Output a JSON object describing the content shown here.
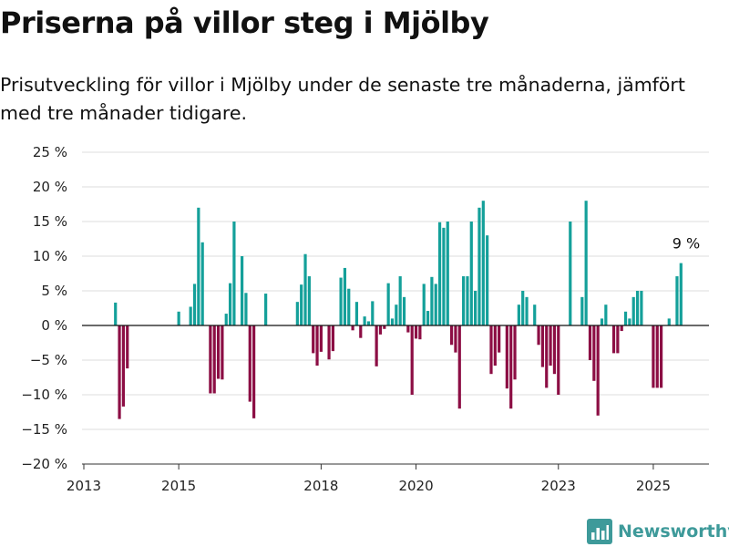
{
  "header": {
    "title": "Priserna på villor steg i Mjölby",
    "subtitle": "Prisutveckling för villor i Mjölby under de senaste tre månaderna, jämfört med tre månader tidigare."
  },
  "brand": {
    "name": "Newsworthy",
    "icon": "newsworthy-logo-icon"
  },
  "chart_data": {
    "type": "bar",
    "colors": {
      "positive": "#14a09a",
      "negative": "#8c0e44",
      "zero_line": "#111111",
      "grid": "#dddddd"
    },
    "grid": true,
    "ylim": [
      -20,
      25
    ],
    "y_ticks": [
      25,
      20,
      15,
      10,
      5,
      0,
      -5,
      -10,
      -15,
      -20
    ],
    "y_tick_labels": [
      "25 %",
      "20 %",
      "15 %",
      "10 %",
      "5 %",
      "0 %",
      "−5 %",
      "−10 %",
      "−15 %",
      "−20 %"
    ],
    "x_ticks": [
      2013,
      2015,
      2018,
      2020,
      2023,
      2025
    ],
    "x_tick_labels": [
      "2013",
      "2015",
      "2018",
      "2020",
      "2023",
      "2025"
    ],
    "xlim": [
      "2013-01",
      "2026-02"
    ],
    "annotation": {
      "text": "9 %",
      "x": "2025-10",
      "value": 9
    },
    "series": [
      {
        "values": [
          [
            "2013-09",
            3.3
          ],
          [
            "2013-10",
            -13.5
          ],
          [
            "2013-11",
            -11.7
          ],
          [
            "2013-12",
            -6.2
          ],
          [
            "2015-01",
            2.0
          ],
          [
            "2015-04",
            2.7
          ],
          [
            "2015-05",
            6.0
          ],
          [
            "2015-06",
            17.0
          ],
          [
            "2015-07",
            12.0
          ],
          [
            "2015-09",
            -9.8
          ],
          [
            "2015-10",
            -9.8
          ],
          [
            "2015-11",
            -7.7
          ],
          [
            "2015-12",
            -7.8
          ],
          [
            "2016-01",
            1.7
          ],
          [
            "2016-02",
            6.1
          ],
          [
            "2016-03",
            15.0
          ],
          [
            "2016-05",
            10.0
          ],
          [
            "2016-06",
            4.7
          ],
          [
            "2016-07",
            -11.0
          ],
          [
            "2016-08",
            -13.4
          ],
          [
            "2016-11",
            4.6
          ],
          [
            "2017-07",
            3.4
          ],
          [
            "2017-08",
            5.9
          ],
          [
            "2017-09",
            10.3
          ],
          [
            "2017-10",
            7.1
          ],
          [
            "2017-11",
            -4.0
          ],
          [
            "2017-12",
            -5.8
          ],
          [
            "2018-01",
            -3.8
          ],
          [
            "2018-03",
            -4.9
          ],
          [
            "2018-04",
            -3.7
          ],
          [
            "2018-06",
            6.9
          ],
          [
            "2018-07",
            8.3
          ],
          [
            "2018-08",
            5.3
          ],
          [
            "2018-09",
            -0.7
          ],
          [
            "2018-10",
            3.4
          ],
          [
            "2018-11",
            -1.8
          ],
          [
            "2018-12",
            1.3
          ],
          [
            "2019-01",
            0.6
          ],
          [
            "2019-02",
            3.5
          ],
          [
            "2019-03",
            -5.9
          ],
          [
            "2019-04",
            -1.3
          ],
          [
            "2019-05",
            -0.5
          ],
          [
            "2019-06",
            6.1
          ],
          [
            "2019-07",
            1.0
          ],
          [
            "2019-08",
            3.0
          ],
          [
            "2019-09",
            7.1
          ],
          [
            "2019-10",
            4.1
          ],
          [
            "2019-11",
            -1.0
          ],
          [
            "2019-12",
            -10.0
          ],
          [
            "2020-01",
            -1.9
          ],
          [
            "2020-02",
            -2.0
          ],
          [
            "2020-03",
            6.0
          ],
          [
            "2020-04",
            2.1
          ],
          [
            "2020-05",
            7.0
          ],
          [
            "2020-06",
            6.0
          ],
          [
            "2020-07",
            14.9
          ],
          [
            "2020-08",
            14.1
          ],
          [
            "2020-09",
            15.0
          ],
          [
            "2020-10",
            -2.8
          ],
          [
            "2020-11",
            -3.9
          ],
          [
            "2020-12",
            -12.0
          ],
          [
            "2021-01",
            7.1
          ],
          [
            "2021-02",
            7.1
          ],
          [
            "2021-03",
            15.0
          ],
          [
            "2021-04",
            5.0
          ],
          [
            "2021-05",
            17.0
          ],
          [
            "2021-06",
            18.0
          ],
          [
            "2021-07",
            13.0
          ],
          [
            "2021-08",
            -7.0
          ],
          [
            "2021-09",
            -5.8
          ],
          [
            "2021-10",
            -3.9
          ],
          [
            "2021-12",
            -9.1
          ],
          [
            "2022-01",
            -12.0
          ],
          [
            "2022-02",
            -7.8
          ],
          [
            "2022-03",
            3.0
          ],
          [
            "2022-04",
            5.0
          ],
          [
            "2022-05",
            4.1
          ],
          [
            "2022-07",
            3.0
          ],
          [
            "2022-08",
            -2.8
          ],
          [
            "2022-09",
            -6.0
          ],
          [
            "2022-10",
            -9.0
          ],
          [
            "2022-11",
            -5.8
          ],
          [
            "2022-12",
            -7.0
          ],
          [
            "2023-01",
            -10.0
          ],
          [
            "2023-04",
            15.0
          ],
          [
            "2023-07",
            4.1
          ],
          [
            "2023-08",
            18.0
          ],
          [
            "2023-09",
            -5.0
          ],
          [
            "2023-10",
            -8.0
          ],
          [
            "2023-11",
            -13.0
          ],
          [
            "2023-12",
            1.0
          ],
          [
            "2024-01",
            3.0
          ],
          [
            "2024-03",
            -4.0
          ],
          [
            "2024-04",
            -4.0
          ],
          [
            "2024-05",
            -0.8
          ],
          [
            "2024-06",
            2.0
          ],
          [
            "2024-07",
            1.0
          ],
          [
            "2024-08",
            4.1
          ],
          [
            "2024-09",
            5.0
          ],
          [
            "2024-10",
            5.0
          ],
          [
            "2025-01",
            -9.0
          ],
          [
            "2025-02",
            -9.0
          ],
          [
            "2025-03",
            -9.0
          ],
          [
            "2025-05",
            1.0
          ],
          [
            "2025-07",
            7.1
          ],
          [
            "2025-08",
            9.0
          ]
        ]
      }
    ]
  }
}
